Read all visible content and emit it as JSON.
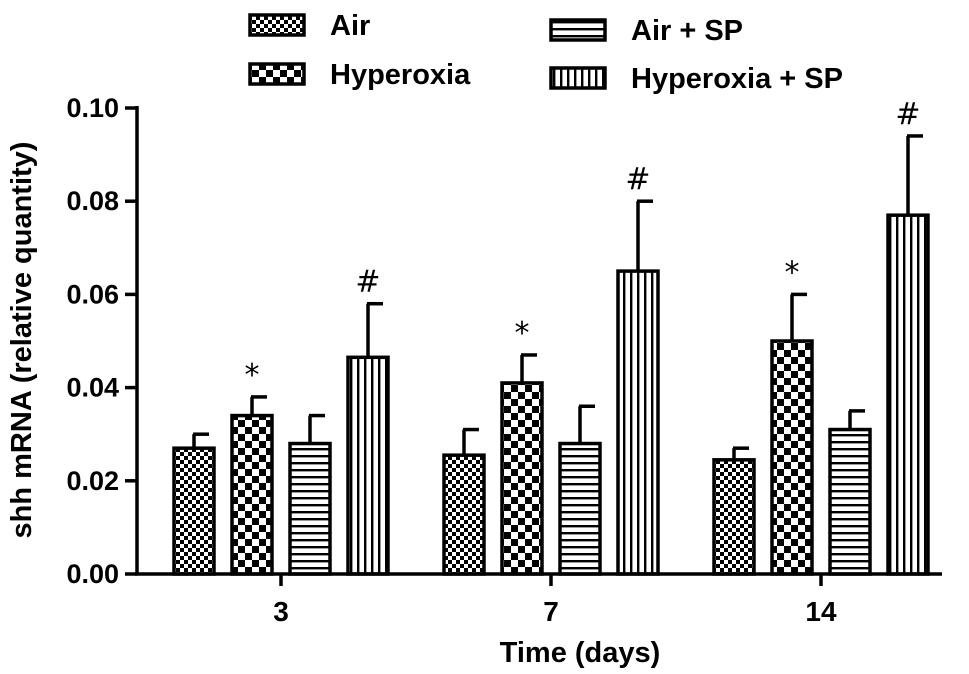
{
  "chart_data": {
    "type": "bar",
    "categories": [
      "3",
      "7",
      "14"
    ],
    "series": [
      {
        "name": "Air",
        "pattern": "fine-check",
        "values": [
          0.027,
          0.0255,
          0.0245
        ],
        "errors": [
          0.003,
          0.0055,
          0.0025
        ]
      },
      {
        "name": "Hyperoxia",
        "pattern": "checker",
        "values": [
          0.034,
          0.041,
          0.05
        ],
        "errors": [
          0.004,
          0.006,
          0.01
        ]
      },
      {
        "name": "Air + SP",
        "pattern": "horizontal-lines",
        "values": [
          0.028,
          0.028,
          0.031
        ],
        "errors": [
          0.006,
          0.008,
          0.004
        ]
      },
      {
        "name": "Hyperoxia + SP",
        "pattern": "vertical-lines",
        "values": [
          0.0465,
          0.065,
          0.077
        ],
        "errors": [
          0.0115,
          0.015,
          0.017
        ]
      }
    ],
    "annotations": [
      {
        "series": 1,
        "category": 0,
        "text": "*"
      },
      {
        "series": 3,
        "category": 0,
        "text": "#"
      },
      {
        "series": 1,
        "category": 1,
        "text": "*"
      },
      {
        "series": 3,
        "category": 1,
        "text": "#"
      },
      {
        "series": 1,
        "category": 2,
        "text": "*"
      },
      {
        "series": 3,
        "category": 2,
        "text": "#"
      }
    ],
    "xlabel": "Time (days)",
    "ylabel": "shh mRNA  (relative quantity)",
    "ylim": [
      0,
      0.1
    ],
    "yticks": [
      "0.00",
      "0.02",
      "0.04",
      "0.06",
      "0.08",
      "0.10"
    ],
    "grid": false,
    "legend_position": "top"
  }
}
